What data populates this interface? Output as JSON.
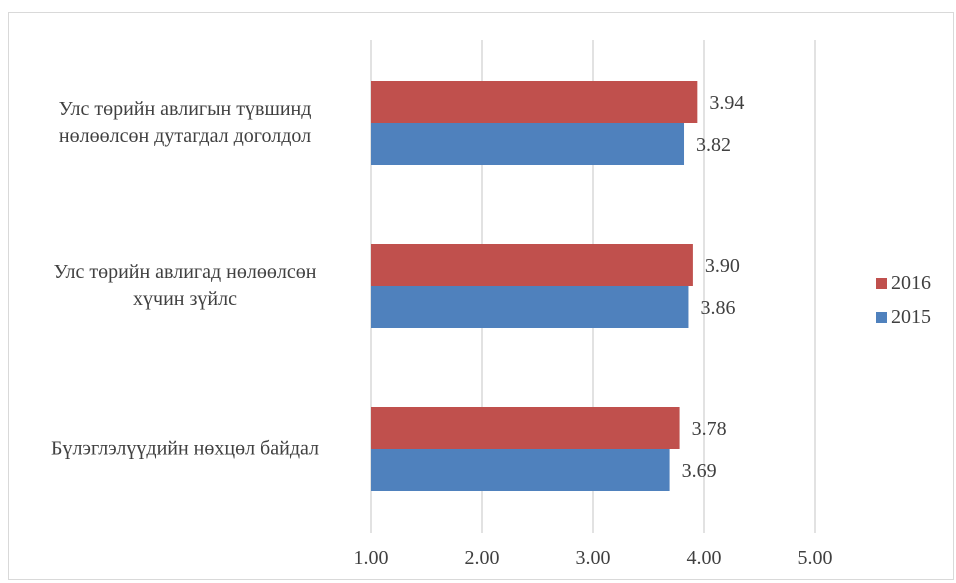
{
  "chart_data": {
    "type": "bar",
    "orientation": "horizontal",
    "categories": [
      [
        "Улс төрийн авлигын түвшинд",
        "нөлөөлсөн дутагдал доголдол"
      ],
      [
        "Улс төрийн авлигад нөлөөлсөн",
        "хүчин зүйлс"
      ],
      [
        "Бүлэглэлүүдийн нөхцөл байдал"
      ]
    ],
    "series": [
      {
        "name": "2016",
        "color": "#c0504d",
        "values": [
          3.94,
          3.9,
          3.78
        ]
      },
      {
        "name": "2015",
        "color": "#4f81bd",
        "values": [
          3.82,
          3.86,
          3.69
        ]
      }
    ],
    "xlim": [
      1.0,
      5.0
    ],
    "xticks": [
      1.0,
      2.0,
      3.0,
      4.0,
      5.0
    ],
    "xtick_labels": [
      "1.00",
      "2.00",
      "3.00",
      "4.00",
      "5.00"
    ],
    "grid": true,
    "legend_position": "right"
  }
}
